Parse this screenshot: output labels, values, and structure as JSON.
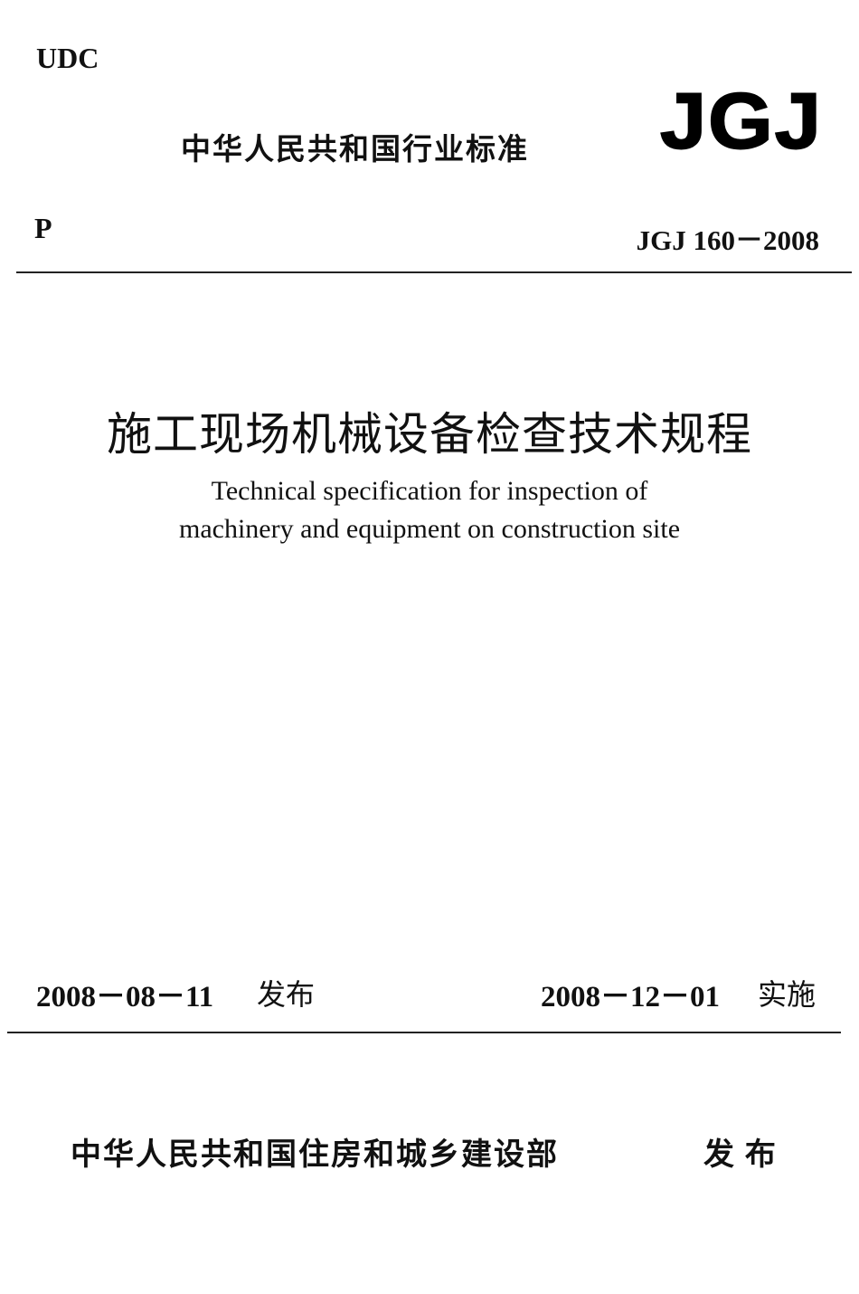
{
  "header": {
    "udc": "UDC",
    "category": "中华人民共和国行业标准",
    "logo": "JGJ",
    "classification": "P",
    "standard_number": "JGJ 160－2008"
  },
  "title": {
    "chinese": "施工现场机械设备检查技术规程",
    "english_line1": "Technical specification for inspection of",
    "english_line2": "machinery and equipment on construction site"
  },
  "dates": {
    "issue_date": "2008－08－11",
    "issue_label": "发布",
    "effective_date": "2008－12－01",
    "effective_label": "实施"
  },
  "footer": {
    "publisher": "中华人民共和国住房和城乡建设部",
    "publish_label": "发 布"
  }
}
